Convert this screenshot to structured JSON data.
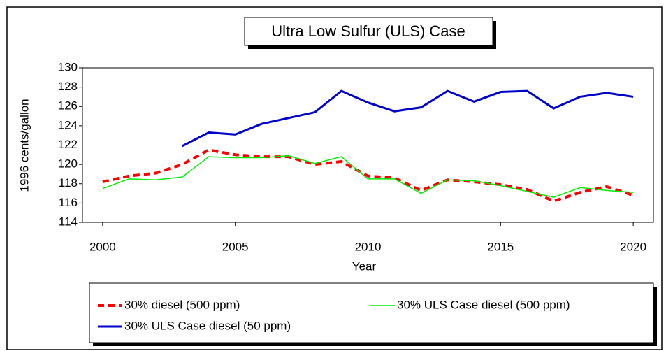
{
  "chart_data": {
    "type": "line",
    "title": "Ultra Low Sulfur (ULS) Case",
    "x_label": "Year",
    "y_label": "1996 cents/gallon",
    "x": [
      2000,
      2001,
      2002,
      2003,
      2004,
      2005,
      2006,
      2007,
      2008,
      2009,
      2010,
      2011,
      2012,
      2013,
      2014,
      2015,
      2016,
      2017,
      2018,
      2019,
      2020
    ],
    "series": [
      {
        "name": "30% diesel (500 ppm)",
        "color": "#ff0000",
        "dashed": true,
        "values": [
          118.2,
          118.8,
          119.1,
          120.0,
          121.5,
          121.0,
          120.8,
          120.8,
          120.0,
          120.3,
          118.8,
          118.6,
          117.3,
          118.4,
          118.2,
          117.9,
          117.4,
          116.2,
          117.1,
          117.7,
          116.8
        ]
      },
      {
        "name": "30% ULS Case diesel (500 ppm)",
        "color": "#00ee00",
        "dashed": false,
        "values": [
          117.5,
          118.5,
          118.4,
          118.7,
          120.8,
          120.7,
          120.7,
          120.9,
          120.1,
          120.8,
          118.5,
          118.5,
          117.0,
          118.4,
          118.3,
          117.8,
          117.2,
          116.6,
          117.6,
          117.3,
          117.1
        ]
      },
      {
        "name": "30% ULS Case diesel (50 ppm)",
        "color": "#0000cc",
        "dashed": false,
        "values": [
          null,
          null,
          null,
          121.9,
          123.3,
          123.1,
          124.2,
          124.8,
          125.4,
          127.6,
          126.4,
          125.5,
          125.9,
          127.6,
          126.5,
          127.5,
          127.6,
          125.8,
          127.0,
          127.4,
          127.0
        ]
      }
    ],
    "xlim": [
      1999.24,
      2020.76
    ],
    "xticks": [
      2000,
      2005,
      2010,
      2015,
      2020
    ],
    "ylim": [
      114,
      130
    ],
    "yticks": [
      114,
      116,
      118,
      120,
      122,
      124,
      126,
      128,
      130
    ]
  }
}
